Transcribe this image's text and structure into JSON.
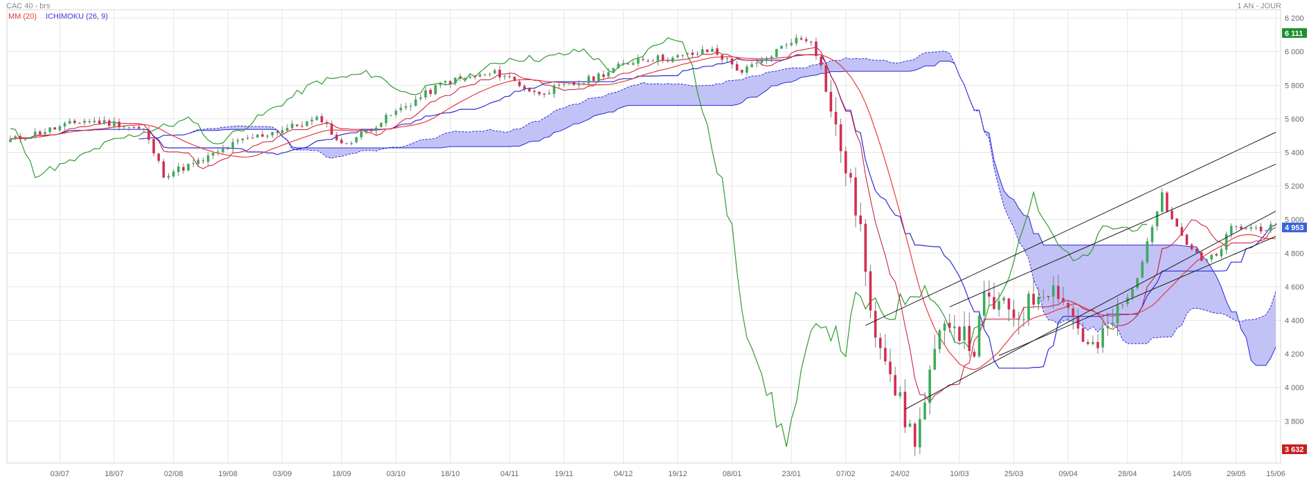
{
  "header": {
    "title": "CAC 40 - brs",
    "period": "1 AN - JOUR",
    "ma_label": "MM (20)",
    "ichimoku_label": "ICHIMOKU (26, 9)"
  },
  "colors": {
    "up": "#3cab5a",
    "down": "#d12e54",
    "ma": "#e53b3b",
    "tenkan": "#c8102e",
    "kijun": "#2929d6",
    "chikou": "#2e9a2e",
    "cloud_fill": "#b7b7f5",
    "grid": "#e6e6e6",
    "last_price_badge": "#3a63d8",
    "high_badge": "#1e8f2e",
    "low_badge": "#c81e1e"
  },
  "chart_data": {
    "type": "candlestick",
    "title": "CAC 40 - brs",
    "ylim": [
      3550,
      6250
    ],
    "y_ticks": [
      "6 200",
      "6 000",
      "5 800",
      "5 600",
      "5 400",
      "5 200",
      "5 000",
      "4 800",
      "4 600",
      "4 400",
      "4 200",
      "4 000",
      "3 800"
    ],
    "x_ticks": [
      "03/07",
      "18/07",
      "02/08",
      "19/08",
      "03/09",
      "18/09",
      "03/10",
      "18/10",
      "04/11",
      "19/11",
      "04/12",
      "19/12",
      "08/01",
      "23/01",
      "07/02",
      "24/02",
      "10/03",
      "25/03",
      "09/04",
      "28/04",
      "14/05",
      "29/05",
      "15/06"
    ],
    "last_price": {
      "label": "4 953",
      "value": 4953
    },
    "period_high": {
      "label": "6 111",
      "value": 6111
    },
    "period_low": {
      "label": "3 632",
      "value": 3632
    },
    "price_keyframes": [
      [
        0,
        5470
      ],
      [
        6,
        5520
      ],
      [
        15,
        5590
      ],
      [
        22,
        5570
      ],
      [
        27,
        5530
      ],
      [
        31,
        5270
      ],
      [
        38,
        5340
      ],
      [
        46,
        5460
      ],
      [
        54,
        5530
      ],
      [
        63,
        5600
      ],
      [
        67,
        5440
      ],
      [
        71,
        5510
      ],
      [
        78,
        5640
      ],
      [
        88,
        5820
      ],
      [
        98,
        5870
      ],
      [
        100,
        5860
      ],
      [
        106,
        5750
      ],
      [
        116,
        5820
      ],
      [
        127,
        5960
      ],
      [
        134,
        5960
      ],
      [
        142,
        6010
      ],
      [
        148,
        5880
      ],
      [
        152,
        5940
      ],
      [
        158,
        6070
      ],
      [
        162,
        6075
      ],
      [
        164,
        5910
      ],
      [
        166,
        5640
      ],
      [
        169,
        5310
      ],
      [
        172,
        4950
      ],
      [
        174,
        4400
      ],
      [
        177,
        4220
      ],
      [
        181,
        3800
      ],
      [
        183,
        3700
      ],
      [
        185,
        3900
      ],
      [
        187,
        4200
      ],
      [
        190,
        4420
      ],
      [
        193,
        4300
      ],
      [
        195,
        4220
      ],
      [
        197,
        4520
      ],
      [
        204,
        4430
      ],
      [
        209,
        4600
      ],
      [
        212,
        4580
      ],
      [
        215,
        4420
      ],
      [
        218,
        4240
      ],
      [
        220,
        4240
      ],
      [
        223,
        4400
      ],
      [
        227,
        4580
      ],
      [
        230,
        4850
      ],
      [
        233,
        5180
      ],
      [
        234,
        5070
      ],
      [
        236,
        4960
      ],
      [
        238,
        4860
      ],
      [
        241,
        4750
      ],
      [
        244,
        4780
      ],
      [
        247,
        4950
      ]
    ],
    "ma_period": 20,
    "ichimoku_periods": [
      26,
      9
    ],
    "channel_lines": [
      {
        "name": "upper",
        "from": [
          173,
          4370
        ],
        "to": [
          256,
          5520
        ]
      },
      {
        "name": "middle",
        "from": [
          190,
          4480
        ],
        "to": [
          256,
          5330
        ]
      },
      {
        "name": "lower-1",
        "from": [
          181,
          3870
        ],
        "to": [
          256,
          5050
        ]
      },
      {
        "name": "lower-2",
        "from": [
          200,
          4190
        ],
        "to": [
          256,
          4900
        ]
      }
    ]
  }
}
